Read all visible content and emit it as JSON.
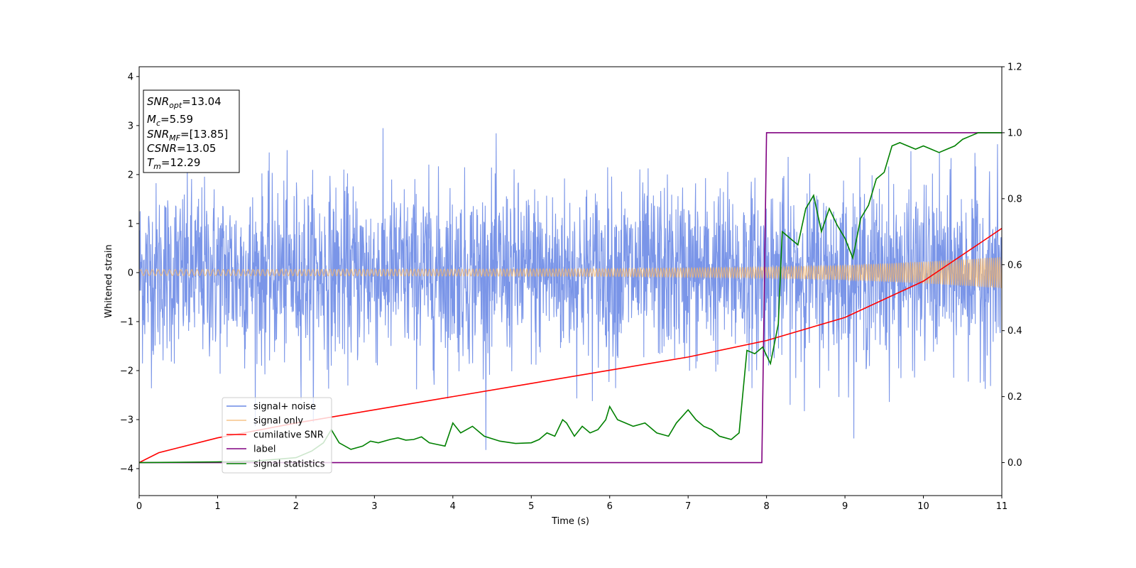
{
  "chart_data": {
    "type": "line",
    "title": "",
    "xlabel": "Time (s)",
    "ylabel": "Whitened strain",
    "ylabel_right": "",
    "xlim": [
      0,
      11
    ],
    "ylim": [
      -4.55,
      4.2
    ],
    "ylim_right": [
      -0.1,
      1.2
    ],
    "x_ticks": [
      0,
      1,
      2,
      3,
      4,
      5,
      6,
      7,
      8,
      9,
      10,
      11
    ],
    "y_ticks": [
      -4,
      -3,
      -2,
      -1,
      0,
      1,
      2,
      3,
      4
    ],
    "y_ticks_right": [
      0.0,
      0.2,
      0.4,
      0.6,
      0.8,
      1.0,
      1.2
    ],
    "grid": false,
    "legend_position": "lower-left",
    "series": [
      {
        "name": "signal+ noise",
        "axis": "left",
        "color": "#6b8ae6",
        "noise_std": 0.9,
        "description_range": [
          -4.2,
          3.8
        ],
        "x": [
          0,
          11
        ]
      },
      {
        "name": "signal only",
        "axis": "left",
        "color": "#f5b56a",
        "envelope_x": [
          0,
          2,
          4,
          6,
          8,
          9,
          10,
          11
        ],
        "envelope": [
          0.06,
          0.065,
          0.07,
          0.08,
          0.11,
          0.15,
          0.22,
          0.32
        ]
      },
      {
        "name": "cumilative SNR",
        "axis": "right",
        "color": "#ff0000",
        "x": [
          0,
          0.25,
          0.5,
          1,
          2,
          3,
          4,
          5,
          6,
          7,
          8,
          9,
          10,
          11
        ],
        "y": [
          0.0,
          0.03,
          0.045,
          0.075,
          0.12,
          0.16,
          0.2,
          0.24,
          0.28,
          0.32,
          0.37,
          0.44,
          0.55,
          0.71
        ]
      },
      {
        "name": "label",
        "axis": "right",
        "color": "#800080",
        "x": [
          0,
          7.94,
          8.0,
          11
        ],
        "y": [
          0,
          0,
          1,
          1
        ]
      },
      {
        "name": "signal statistics",
        "axis": "right",
        "color": "#008000",
        "x": [
          0,
          1,
          1.5,
          2.0,
          2.2,
          2.35,
          2.45,
          2.55,
          2.7,
          2.85,
          2.95,
          3.05,
          3.2,
          3.3,
          3.4,
          3.5,
          3.6,
          3.7,
          3.8,
          3.9,
          4.0,
          4.1,
          4.25,
          4.4,
          4.6,
          4.8,
          5.0,
          5.1,
          5.2,
          5.3,
          5.4,
          5.45,
          5.55,
          5.65,
          5.75,
          5.85,
          5.95,
          6.0,
          6.1,
          6.2,
          6.3,
          6.45,
          6.6,
          6.75,
          6.85,
          7.0,
          7.1,
          7.2,
          7.3,
          7.4,
          7.55,
          7.65,
          7.75,
          7.85,
          7.95,
          8.05,
          8.15,
          8.2,
          8.3,
          8.4,
          8.5,
          8.6,
          8.7,
          8.8,
          8.9,
          9.0,
          9.1,
          9.2,
          9.3,
          9.4,
          9.5,
          9.6,
          9.7,
          9.8,
          9.9,
          10.0,
          10.1,
          10.2,
          10.3,
          10.4,
          10.5,
          10.6,
          10.7,
          10.8,
          10.9,
          11.0
        ],
        "y": [
          0.0,
          0.002,
          0.005,
          0.015,
          0.035,
          0.06,
          0.1,
          0.06,
          0.04,
          0.05,
          0.065,
          0.06,
          0.07,
          0.075,
          0.068,
          0.07,
          0.078,
          0.06,
          0.055,
          0.05,
          0.12,
          0.09,
          0.11,
          0.08,
          0.065,
          0.058,
          0.06,
          0.07,
          0.09,
          0.08,
          0.13,
          0.12,
          0.08,
          0.11,
          0.09,
          0.1,
          0.13,
          0.17,
          0.13,
          0.12,
          0.11,
          0.12,
          0.09,
          0.08,
          0.12,
          0.16,
          0.13,
          0.11,
          0.1,
          0.08,
          0.07,
          0.09,
          0.34,
          0.33,
          0.35,
          0.3,
          0.42,
          0.7,
          0.68,
          0.66,
          0.77,
          0.81,
          0.7,
          0.77,
          0.72,
          0.68,
          0.62,
          0.74,
          0.78,
          0.86,
          0.88,
          0.96,
          0.97,
          0.96,
          0.95,
          0.96,
          0.95,
          0.94,
          0.95,
          0.96,
          0.98,
          0.99,
          1.0,
          1.0,
          1.0,
          1.0
        ]
      }
    ],
    "annotation": {
      "lines": [
        {
          "sym": "SNR",
          "sub": "opt",
          "value": "=13.04"
        },
        {
          "sym": "M",
          "sub": "c",
          "value": "=5.59"
        },
        {
          "sym": "SNR",
          "sub": "MF",
          "value": "=[13.85]"
        },
        {
          "sym": "CSNR",
          "sub": "",
          "value": "=13.05"
        },
        {
          "sym": "T",
          "sub": "m",
          "value": "=12.29"
        }
      ]
    }
  }
}
